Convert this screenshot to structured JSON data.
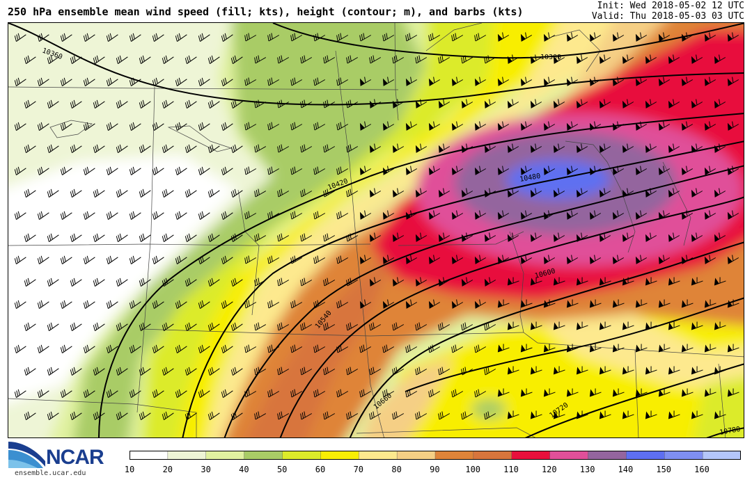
{
  "header": {
    "title": "250 hPa ensemble mean wind speed (fill; kts), height (contour; m), and barbs (kts)",
    "init": "Init: Wed 2018-05-02 12 UTC",
    "valid": "Valid: Thu 2018-05-03 03 UTC"
  },
  "contours": {
    "labels": [
      "10360",
      "10300",
      "10420",
      "10480",
      "10540",
      "10600",
      "10660",
      "10720",
      "10780"
    ]
  },
  "colorbar": {
    "ticks": [
      "10",
      "20",
      "30",
      "40",
      "50",
      "60",
      "70",
      "80",
      "90",
      "100",
      "110",
      "120",
      "130",
      "140",
      "150",
      "160"
    ],
    "colors": [
      "#ffffff",
      "#eef5d6",
      "#e1f2a0",
      "#a9cc66",
      "#dceb2a",
      "#f8ee05",
      "#fde98e",
      "#f5cf85",
      "#df8439",
      "#d8753c",
      "#e8103c",
      "#e05099",
      "#94659e",
      "#5e6ff1",
      "#7f8ff2",
      "#b4c6fa"
    ]
  },
  "logo": {
    "text": "NCAR",
    "url": "ensemble.ucar.edu"
  }
}
